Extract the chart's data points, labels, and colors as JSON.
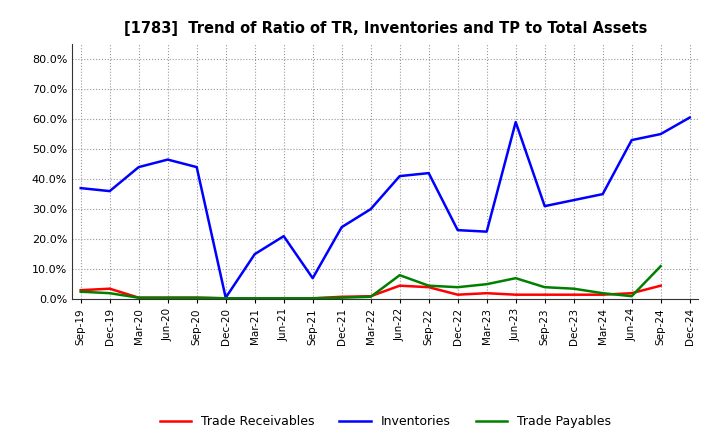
{
  "title": "[1783]  Trend of Ratio of TR, Inventories and TP to Total Assets",
  "x_labels": [
    "Sep-19",
    "Dec-19",
    "Mar-20",
    "Jun-20",
    "Sep-20",
    "Dec-20",
    "Mar-21",
    "Jun-21",
    "Sep-21",
    "Dec-21",
    "Mar-22",
    "Jun-22",
    "Sep-22",
    "Dec-22",
    "Mar-23",
    "Jun-23",
    "Sep-23",
    "Dec-23",
    "Mar-24",
    "Jun-24",
    "Sep-24",
    "Dec-24"
  ],
  "trade_receivables": [
    3.0,
    3.5,
    0.5,
    0.5,
    0.5,
    0.3,
    0.3,
    0.3,
    0.3,
    0.8,
    1.0,
    4.5,
    4.0,
    1.5,
    2.0,
    1.5,
    1.5,
    1.5,
    1.5,
    2.0,
    4.5,
    null
  ],
  "inventories": [
    37.0,
    36.0,
    44.0,
    46.5,
    44.0,
    0.5,
    15.0,
    21.0,
    7.0,
    24.0,
    30.0,
    41.0,
    42.0,
    23.0,
    22.5,
    59.0,
    31.0,
    33.0,
    35.0,
    53.0,
    55.0,
    60.5
  ],
  "trade_payables": [
    2.5,
    2.0,
    0.5,
    0.5,
    0.5,
    0.3,
    0.3,
    0.3,
    0.3,
    0.5,
    0.8,
    8.0,
    4.5,
    4.0,
    5.0,
    7.0,
    4.0,
    3.5,
    2.0,
    1.0,
    11.0,
    null
  ],
  "tr_color": "#ff0000",
  "inv_color": "#0000ff",
  "tp_color": "#008000",
  "ylim": [
    0,
    85
  ],
  "yticks": [
    0,
    10,
    20,
    30,
    40,
    50,
    60,
    70,
    80
  ],
  "background_color": "#ffffff",
  "plot_bg_color": "#ffffff",
  "grid_color": "#999999",
  "legend_labels": [
    "Trade Receivables",
    "Inventories",
    "Trade Payables"
  ]
}
